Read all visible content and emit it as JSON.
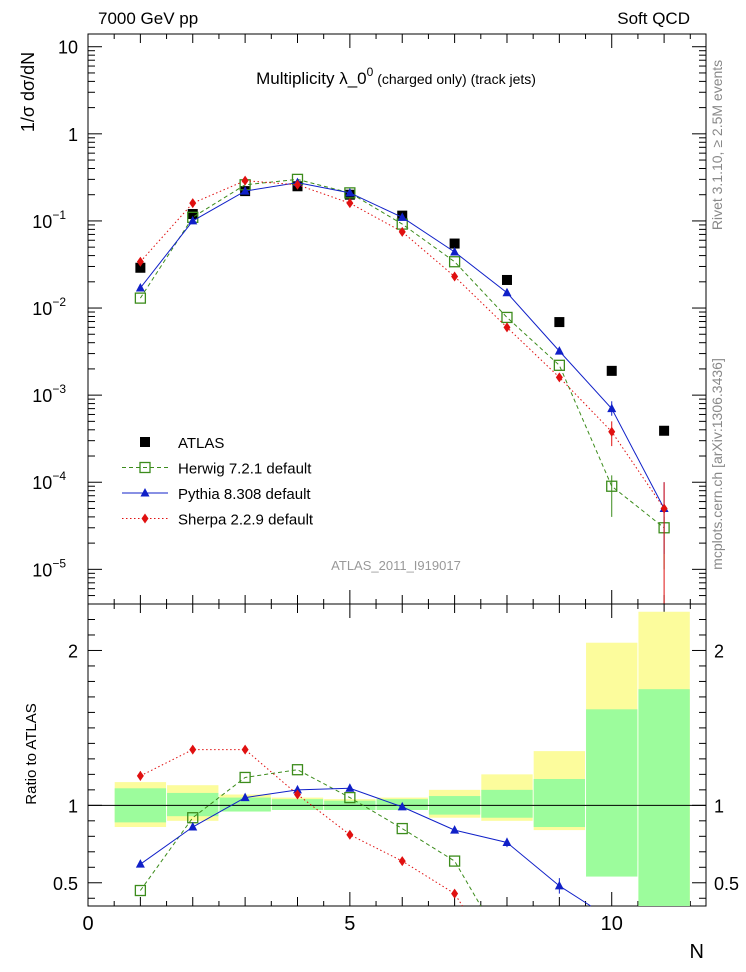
{
  "header": {
    "left": "7000 GeV pp",
    "right": "Soft QCD"
  },
  "side_labels": {
    "rivet": "Rivet 3.1.10, ≥ 2.5M events",
    "mcplots": "mcplots.cern.ch [arXiv:1306.3436]"
  },
  "chart_data": [
    {
      "type": "scatter",
      "panel": "main",
      "title": "Multiplicity  λ_0⁰ (charged only) (track jets)",
      "title_main": "Multiplicity  λ_0",
      "title_sup": "0",
      "title_rest": " (charged only) (track jets)",
      "watermark": "ATLAS_2011_I919017",
      "ylabel": "1/σ dσ/dN",
      "xlabel": "N",
      "yscale": "log",
      "xlim": [
        0,
        11.8
      ],
      "ylim": [
        4e-06,
        14
      ],
      "y_tick_labels": [
        {
          "value": 1e-05,
          "base": "10",
          "exp": "−5"
        },
        {
          "value": 0.0001,
          "base": "10",
          "exp": "−4"
        },
        {
          "value": 0.001,
          "base": "10",
          "exp": "−3"
        },
        {
          "value": 0.01,
          "base": "10",
          "exp": "−2"
        },
        {
          "value": 0.1,
          "base": "10",
          "exp": "−1"
        },
        {
          "value": 1,
          "base": "1",
          "exp": ""
        },
        {
          "value": 10,
          "base": "10",
          "exp": ""
        }
      ],
      "legend_position": "middle-left",
      "series": [
        {
          "name": "ATLAS",
          "color": "#000000",
          "marker": "square",
          "line": "none",
          "x": [
            1,
            2,
            3,
            4,
            5,
            6,
            7,
            8,
            9,
            10,
            11
          ],
          "y": [
            0.029,
            0.12,
            0.22,
            0.25,
            0.2,
            0.115,
            0.055,
            0.021,
            0.0069,
            0.0019,
            0.00039
          ]
        },
        {
          "name": "Herwig 7.2.1 default",
          "color": "#3c8c1c",
          "marker": "open-square",
          "line": "dashed",
          "x": [
            1,
            2,
            3,
            4,
            5,
            6,
            7,
            8,
            9,
            10,
            11
          ],
          "y": [
            0.013,
            0.11,
            0.26,
            0.3,
            0.21,
            0.092,
            0.034,
            0.0078,
            0.0022,
            9e-05,
            3e-05
          ],
          "err_low": [
            0,
            0,
            0,
            0,
            0,
            0,
            0,
            0,
            0,
            5e-05,
            2e-05
          ],
          "err_high": [
            0,
            0,
            0,
            0,
            0,
            0,
            0,
            0,
            0,
            3e-05,
            1e-05
          ]
        },
        {
          "name": "Pythia 8.308 default",
          "color": "#1020c8",
          "marker": "triangle",
          "line": "solid",
          "x": [
            1,
            2,
            3,
            4,
            5,
            6,
            7,
            8,
            9,
            10,
            11
          ],
          "y": [
            0.017,
            0.1,
            0.22,
            0.275,
            0.21,
            0.11,
            0.044,
            0.015,
            0.0032,
            0.0007,
            5e-05
          ],
          "err_low": [
            0,
            0,
            0,
            0,
            0,
            0,
            0,
            0,
            0,
            0.00012,
            3.5e-05
          ],
          "err_high": [
            0,
            0,
            0,
            0,
            0,
            0,
            0,
            0,
            0,
            0.00015,
            5e-05
          ]
        },
        {
          "name": "Sherpa 2.2.9 default",
          "color": "#e01010",
          "marker": "diamond",
          "line": "dotted",
          "x": [
            1,
            2,
            3,
            4,
            5,
            6,
            7,
            8,
            9,
            10,
            11
          ],
          "y": [
            0.034,
            0.16,
            0.29,
            0.26,
            0.16,
            0.075,
            0.023,
            0.006,
            0.0016,
            0.00038,
            5e-05
          ],
          "err_low": [
            0,
            0,
            0,
            0,
            0,
            0,
            0,
            0,
            0,
            0.00012,
            4.9e-05
          ],
          "err_high": [
            0,
            0,
            0,
            0,
            0,
            0,
            0,
            0,
            0,
            0.00012,
            5e-05
          ]
        }
      ]
    },
    {
      "type": "scatter",
      "panel": "ratio",
      "ylabel": "Ratio to ATLAS",
      "xlabel": "N",
      "xlim": [
        0,
        11.8
      ],
      "ylim": [
        0.35,
        2.3
      ],
      "x_tick_labels": [
        "0",
        "5",
        "10"
      ],
      "x_tick_values": [
        0,
        5,
        10
      ],
      "y_tick_labels": [
        "0.5",
        "1",
        "2"
      ],
      "y_tick_values": [
        0.5,
        1,
        2
      ],
      "reference": 1,
      "bands": {
        "edges": [
          0.5,
          1.5,
          2.5,
          3.5,
          4.5,
          5.5,
          6.5,
          7.5,
          8.5,
          9.5,
          10.5,
          11.5
        ],
        "stat_color": "#9cfc9c",
        "syst_color": "#fcfc9c",
        "stat_low": [
          0.89,
          0.93,
          0.96,
          0.97,
          0.97,
          0.97,
          0.94,
          0.92,
          0.86,
          0.54,
          0.3
        ],
        "stat_high": [
          1.11,
          1.08,
          1.05,
          1.04,
          1.03,
          1.04,
          1.06,
          1.1,
          1.17,
          1.62,
          1.75
        ],
        "syst_low": [
          0.86,
          0.9,
          0.96,
          0.97,
          0.97,
          0.97,
          0.92,
          0.9,
          0.84,
          0.64,
          0.3
        ],
        "syst_high": [
          1.15,
          1.13,
          1.07,
          1.05,
          1.04,
          1.05,
          1.1,
          1.2,
          1.35,
          2.05,
          2.25
        ]
      },
      "series": [
        {
          "name": "Herwig 7.2.1 default",
          "color": "#3c8c1c",
          "marker": "open-square",
          "line": "dashed",
          "x": [
            1,
            2,
            3,
            4,
            5,
            6,
            7
          ],
          "y": [
            0.45,
            0.92,
            1.18,
            1.23,
            1.05,
            0.85,
            0.64
          ],
          "tail": [
            7.5,
            0.35
          ]
        },
        {
          "name": "Pythia 8.308 default",
          "color": "#1020c8",
          "marker": "triangle",
          "line": "solid",
          "x": [
            1,
            2,
            3,
            4,
            5,
            6,
            7,
            8,
            9
          ],
          "y": [
            0.62,
            0.86,
            1.05,
            1.1,
            1.11,
            0.99,
            0.84,
            0.76,
            0.48
          ],
          "err": [
            0.02,
            0,
            0,
            0,
            0,
            0,
            0.02,
            0.03,
            0.05
          ],
          "tail": [
            9.6,
            0.35
          ]
        },
        {
          "name": "Sherpa 2.2.9 default",
          "color": "#e01010",
          "marker": "diamond",
          "line": "dotted",
          "x": [
            1,
            2,
            3,
            4,
            5,
            6,
            7
          ],
          "y": [
            1.19,
            1.36,
            1.36,
            1.07,
            0.81,
            0.64,
            0.43
          ],
          "err": [
            0.03,
            0,
            0,
            0,
            0,
            0,
            0.02
          ],
          "tail": [
            7.15,
            0.35
          ]
        }
      ]
    }
  ]
}
